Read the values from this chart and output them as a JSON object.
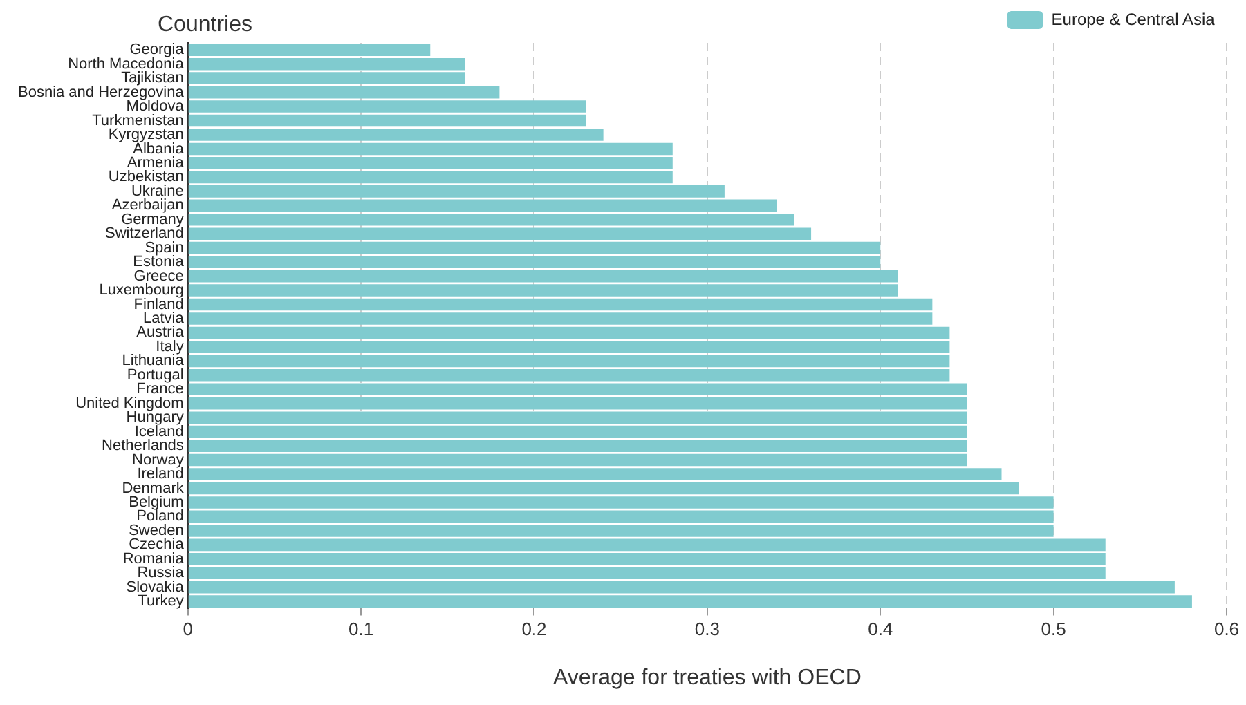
{
  "chart_data": {
    "type": "bar",
    "orientation": "horizontal",
    "ylabel": "Countries",
    "xlabel": "Average for treaties with OECD",
    "categories": [
      "Georgia",
      "North Macedonia",
      "Tajikistan",
      "Bosnia and Herzegovina",
      "Moldova",
      "Turkmenistan",
      "Kyrgyzstan",
      "Albania",
      "Armenia",
      "Uzbekistan",
      "Ukraine",
      "Azerbaijan",
      "Germany",
      "Switzerland",
      "Spain",
      "Estonia",
      "Greece",
      "Luxembourg",
      "Finland",
      "Latvia",
      "Austria",
      "Italy",
      "Lithuania",
      "Portugal",
      "France",
      "United Kingdom",
      "Hungary",
      "Iceland",
      "Netherlands",
      "Norway",
      "Ireland",
      "Denmark",
      "Belgium",
      "Poland",
      "Sweden",
      "Czechia",
      "Romania",
      "Russia",
      "Slovakia",
      "Turkey"
    ],
    "series": [
      {
        "name": "Europe & Central Asia",
        "color": "#80cbcf",
        "values": [
          0.14,
          0.16,
          0.16,
          0.18,
          0.23,
          0.23,
          0.24,
          0.28,
          0.28,
          0.28,
          0.31,
          0.34,
          0.35,
          0.36,
          0.4,
          0.4,
          0.41,
          0.41,
          0.43,
          0.43,
          0.44,
          0.44,
          0.44,
          0.44,
          0.45,
          0.45,
          0.45,
          0.45,
          0.45,
          0.45,
          0.47,
          0.48,
          0.5,
          0.5,
          0.5,
          0.53,
          0.53,
          0.53,
          0.57,
          0.58
        ]
      }
    ],
    "xlim": [
      0,
      0.6
    ],
    "xticks": [
      0,
      0.1,
      0.2,
      0.3,
      0.4,
      0.5,
      0.6
    ],
    "grid": "x",
    "legend": "top right"
  }
}
